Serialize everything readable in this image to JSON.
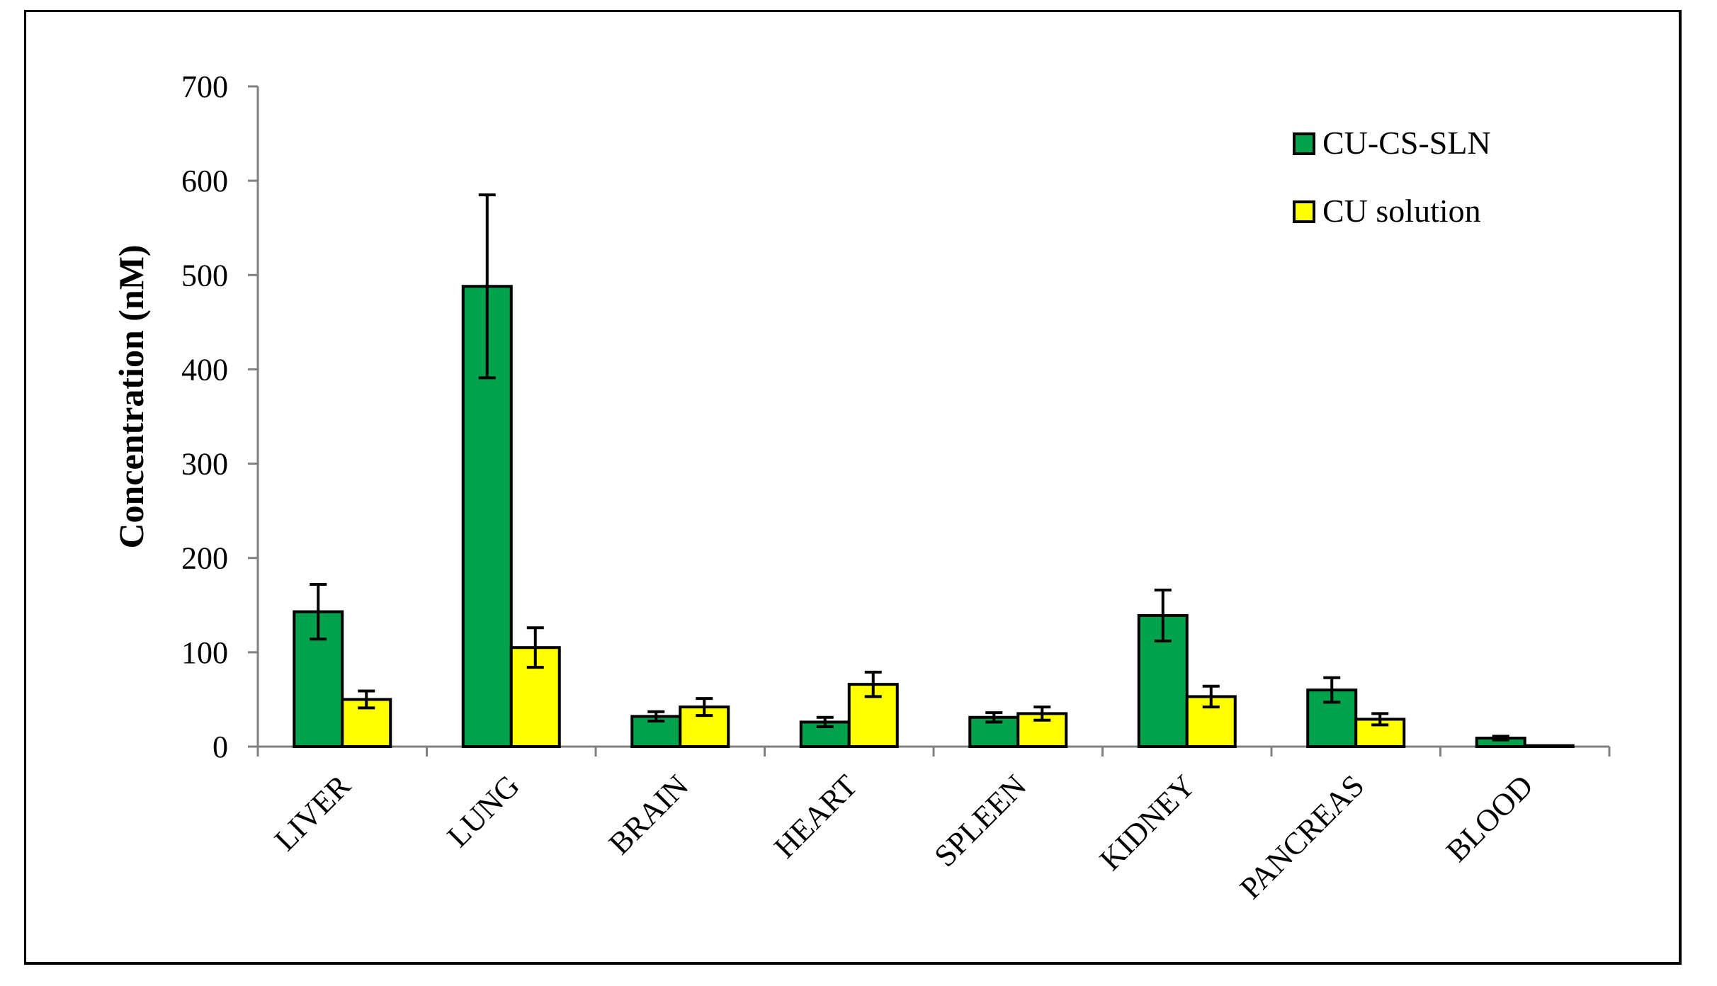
{
  "chart_data": {
    "type": "bar",
    "title": "",
    "xlabel": "",
    "ylabel": "Concentration (nM)",
    "ylim": [
      0,
      700
    ],
    "yticks": [
      0,
      100,
      200,
      300,
      400,
      500,
      600,
      700
    ],
    "grid": false,
    "legend_position": "top-right",
    "categories": [
      "LIVER",
      "LUNG",
      "BRAIN",
      "HEART",
      "SPLEEN",
      "KIDNEY",
      "PANCREAS",
      "BLOOD"
    ],
    "series": [
      {
        "name": "CU-CS-SLN",
        "color": "#00a24b",
        "values": [
          143,
          488,
          32,
          26,
          31,
          139,
          60,
          9
        ],
        "errors": [
          29,
          97,
          5,
          5,
          5,
          27,
          13,
          2
        ]
      },
      {
        "name": "CU solution",
        "color": "#ffff00",
        "values": [
          50,
          105,
          42,
          66,
          35,
          53,
          29,
          1
        ],
        "errors": [
          9,
          21,
          9,
          13,
          7,
          11,
          6,
          0
        ]
      }
    ]
  }
}
